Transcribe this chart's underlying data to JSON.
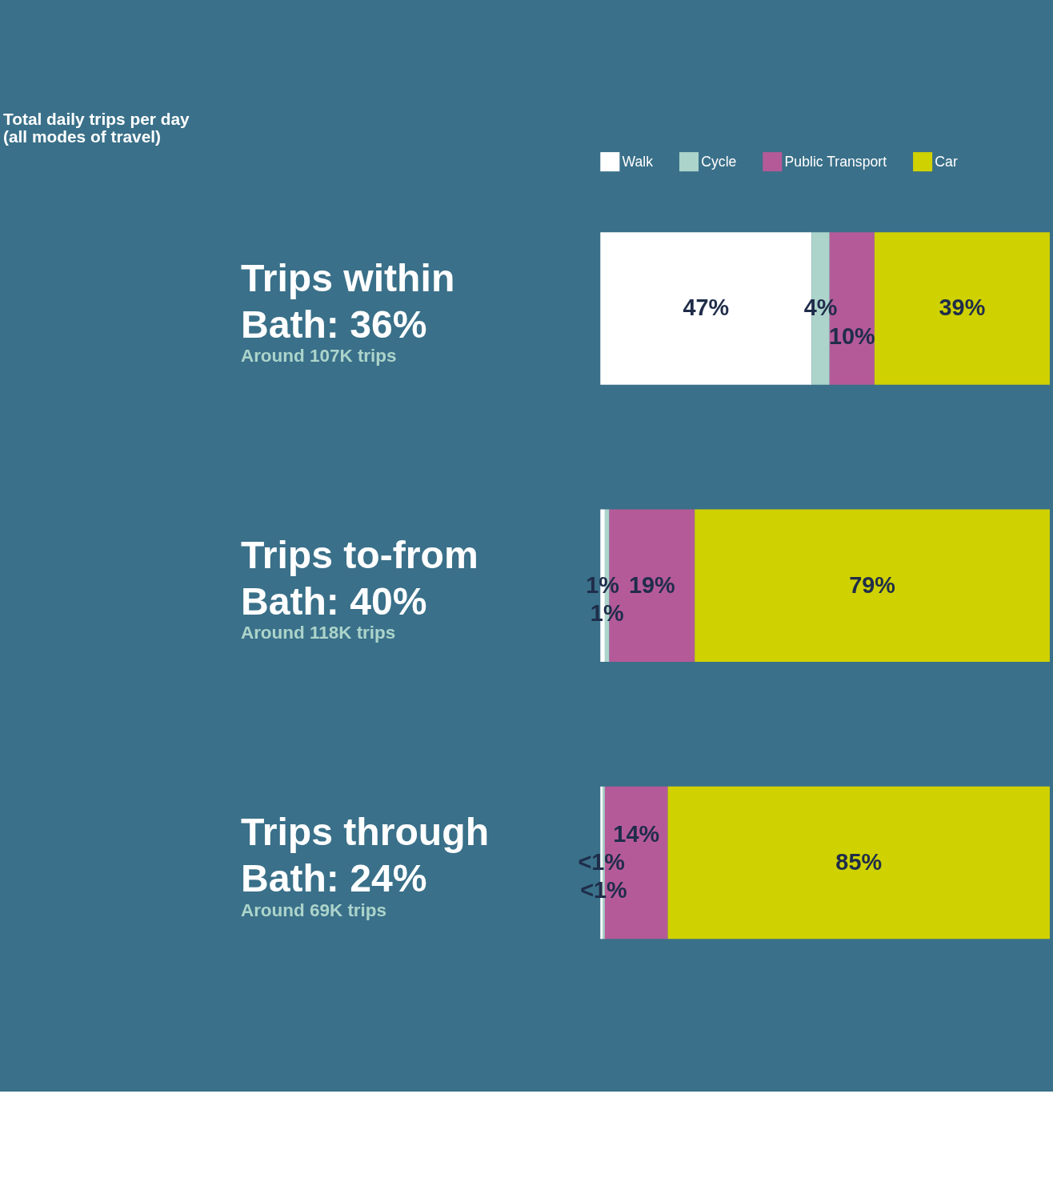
{
  "chart_data": {
    "type": "bar",
    "orientation": "horizontal",
    "stacked": true,
    "title": "Total daily trips per day (all modes of travel)",
    "categories": [
      "Trips within Bath: 36%",
      "Trips to-from Bath: 40%",
      "Trips through Bath: 24%"
    ],
    "annotations": [
      "Around 107K trips",
      "Around 118K trips",
      "Around 69K trips"
    ],
    "series": [
      {
        "name": "Walk",
        "color": "#ffffff",
        "values": [
          47,
          1,
          0.5
        ],
        "value_labels": [
          "47%",
          "1%",
          "<1%"
        ]
      },
      {
        "name": "Cycle",
        "color": "#acd4cb",
        "values": [
          4,
          1,
          0.5
        ],
        "value_labels": [
          "4%",
          "1%",
          "<1%"
        ]
      },
      {
        "name": "Public Transport",
        "color": "#b55a98",
        "values": [
          10,
          19,
          14
        ],
        "value_labels": [
          "10%",
          "19%",
          "14%"
        ]
      },
      {
        "name": "Car",
        "color": "#cfd100",
        "values": [
          39,
          79,
          85
        ],
        "value_labels": [
          "39%",
          "79%",
          "85%"
        ]
      }
    ],
    "legend": "top",
    "tick_labels": "y",
    "grid": false
  }
}
